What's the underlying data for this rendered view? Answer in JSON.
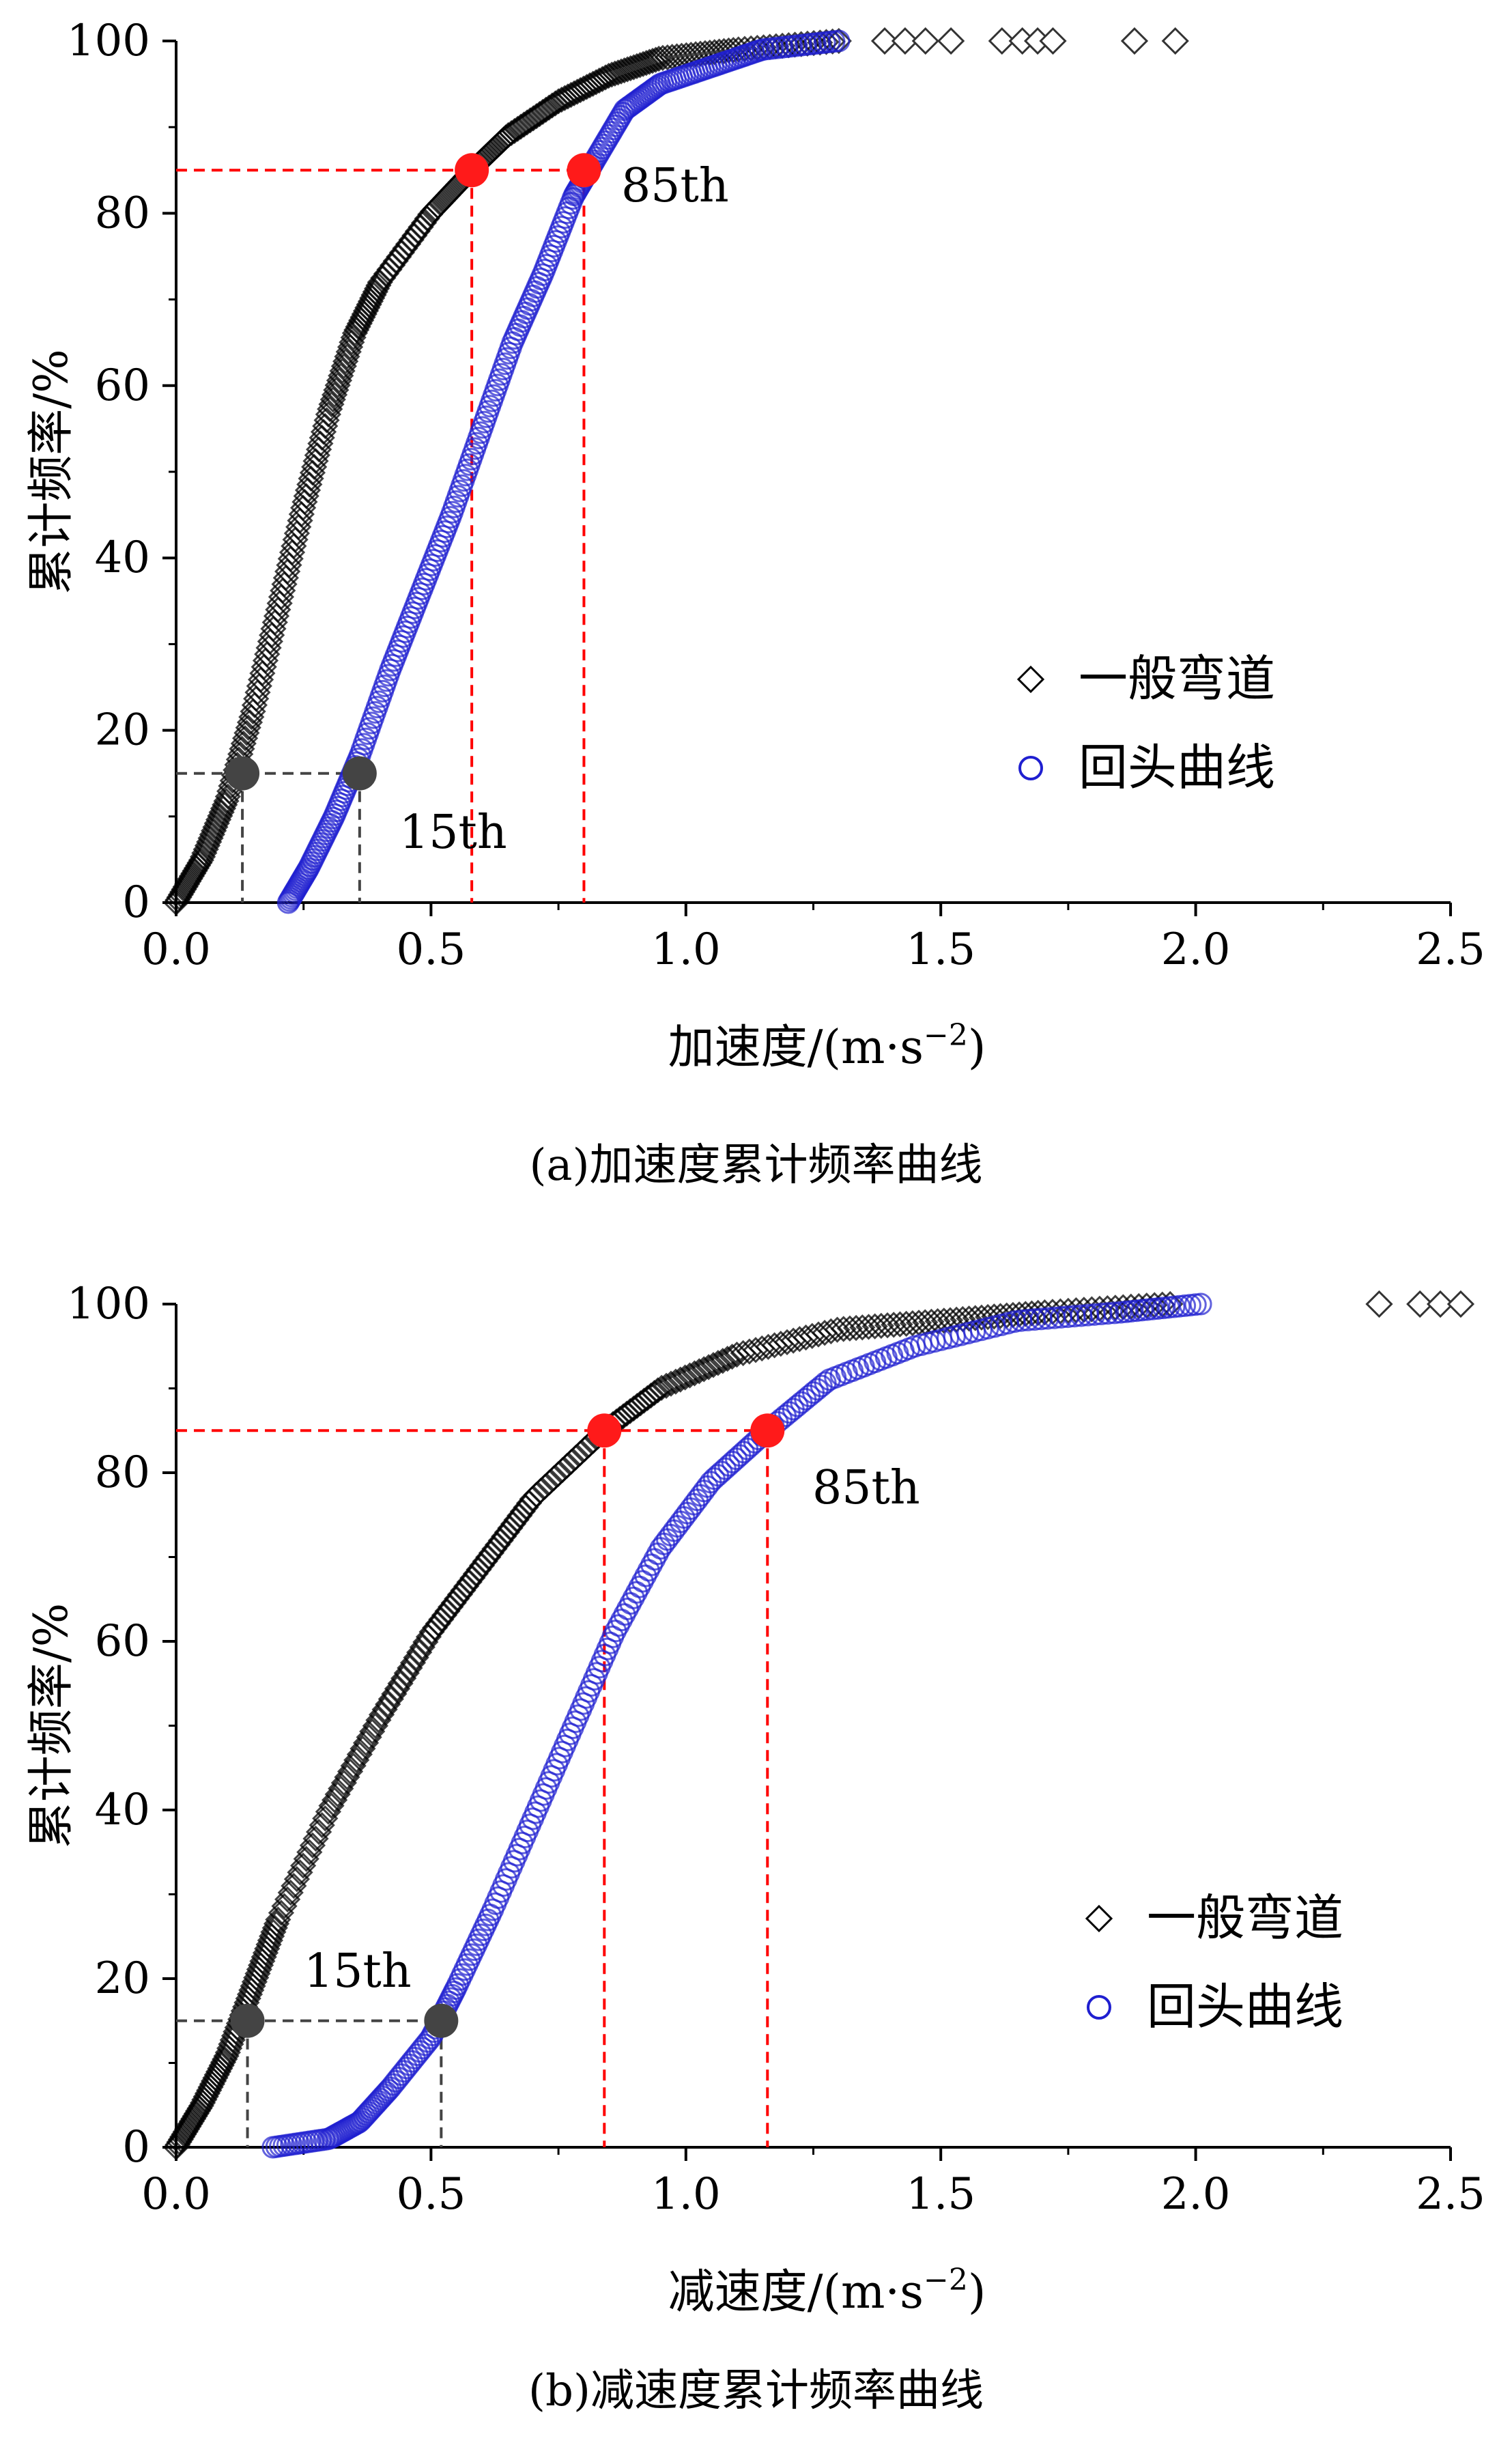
{
  "chart_data": [
    {
      "type": "scatter",
      "title": "",
      "caption": "(a)加速度累计频率曲线",
      "xlabel": "加速度/(m·s",
      "xlabel_sup": "−2",
      "xlabel_close": ")",
      "ylabel": "累计频率/%",
      "xlim": [
        0,
        2.5
      ],
      "ylim": [
        0,
        100
      ],
      "xticks": [
        0.0,
        0.5,
        1.0,
        1.5,
        2.0,
        2.5
      ],
      "xtick_labels": [
        "0.0",
        "0.5",
        "1.0",
        "1.5",
        "2.0",
        "2.5"
      ],
      "yticks": [
        0,
        20,
        40,
        60,
        80,
        100
      ],
      "ytick_labels": [
        "0",
        "20",
        "40",
        "60",
        "80",
        "100"
      ],
      "legend_position": "right",
      "series": [
        {
          "name": "一般弯道",
          "marker": "diamond",
          "color": "#000000",
          "curve": [
            [
              0.0,
              0
            ],
            [
              0.05,
              5
            ],
            [
              0.1,
              12
            ],
            [
              0.15,
              22
            ],
            [
              0.2,
              34
            ],
            [
              0.25,
              46
            ],
            [
              0.3,
              57
            ],
            [
              0.35,
              66
            ],
            [
              0.4,
              72
            ],
            [
              0.5,
              80
            ],
            [
              0.58,
              85
            ],
            [
              0.65,
              89
            ],
            [
              0.75,
              93
            ],
            [
              0.85,
              96
            ],
            [
              0.95,
              98
            ],
            [
              1.1,
              99
            ],
            [
              1.3,
              100
            ]
          ],
          "outliers": [
            1.39,
            1.43,
            1.47,
            1.52,
            1.62,
            1.66,
            1.69,
            1.72,
            1.88,
            1.96
          ]
        },
        {
          "name": "回头曲线",
          "marker": "circle",
          "color": "#1f1fd0",
          "curve": [
            [
              0.22,
              0
            ],
            [
              0.26,
              4
            ],
            [
              0.31,
              10
            ],
            [
              0.36,
              17
            ],
            [
              0.42,
              27
            ],
            [
              0.48,
              36
            ],
            [
              0.54,
              45
            ],
            [
              0.6,
              55
            ],
            [
              0.66,
              65
            ],
            [
              0.72,
              73
            ],
            [
              0.78,
              82
            ],
            [
              0.82,
              86
            ],
            [
              0.88,
              92
            ],
            [
              0.95,
              95
            ],
            [
              1.05,
              97
            ],
            [
              1.15,
              99
            ],
            [
              1.3,
              100
            ]
          ],
          "outliers": []
        }
      ],
      "reference_points": [
        {
          "label": "15th",
          "y": 15,
          "xs": [
            0.13,
            0.36
          ],
          "color": "#444444"
        },
        {
          "label": "85th",
          "y": 85,
          "xs": [
            0.58,
            0.8
          ],
          "color": "#ff0000"
        }
      ],
      "label_15th": "15th",
      "label_85th": "85th"
    },
    {
      "type": "scatter",
      "title": "",
      "caption": "(b)减速度累计频率曲线",
      "xlabel": "减速度/(m·s",
      "xlabel_sup": "−2",
      "xlabel_close": ")",
      "ylabel": "累计频率/%",
      "xlim": [
        0,
        2.5
      ],
      "ylim": [
        0,
        100
      ],
      "xticks": [
        0.0,
        0.5,
        1.0,
        1.5,
        2.0,
        2.5
      ],
      "xtick_labels": [
        "0.0",
        "0.5",
        "1.0",
        "1.5",
        "2.0",
        "2.5"
      ],
      "yticks": [
        0,
        20,
        40,
        60,
        80,
        100
      ],
      "ytick_labels": [
        "0",
        "20",
        "40",
        "60",
        "80",
        "100"
      ],
      "legend_position": "right",
      "series": [
        {
          "name": "一般弯道",
          "marker": "diamond",
          "color": "#000000",
          "curve": [
            [
              0.0,
              0
            ],
            [
              0.05,
              5
            ],
            [
              0.1,
              11
            ],
            [
              0.15,
              19
            ],
            [
              0.2,
              27
            ],
            [
              0.3,
              40
            ],
            [
              0.4,
              51
            ],
            [
              0.5,
              61
            ],
            [
              0.6,
              69
            ],
            [
              0.7,
              77
            ],
            [
              0.84,
              85
            ],
            [
              0.95,
              90
            ],
            [
              1.1,
              94
            ],
            [
              1.3,
              97
            ],
            [
              1.5,
              98
            ],
            [
              1.7,
              99
            ],
            [
              1.95,
              100
            ]
          ],
          "outliers": [
            2.36,
            2.44,
            2.48,
            2.52
          ]
        },
        {
          "name": "回头曲线",
          "marker": "circle",
          "color": "#1f1fd0",
          "curve": [
            [
              0.19,
              0
            ],
            [
              0.3,
              1
            ],
            [
              0.36,
              3
            ],
            [
              0.42,
              7
            ],
            [
              0.5,
              13
            ],
            [
              0.55,
              19
            ],
            [
              0.62,
              28
            ],
            [
              0.7,
              39
            ],
            [
              0.78,
              50
            ],
            [
              0.86,
              61
            ],
            [
              0.95,
              71
            ],
            [
              1.05,
              79
            ],
            [
              1.16,
              85
            ],
            [
              1.28,
              91
            ],
            [
              1.45,
              95
            ],
            [
              1.65,
              98
            ],
            [
              1.85,
              99
            ],
            [
              2.01,
              100
            ]
          ],
          "outliers": []
        }
      ],
      "reference_points": [
        {
          "label": "15th",
          "y": 15,
          "xs": [
            0.14,
            0.52
          ],
          "color": "#444444"
        },
        {
          "label": "85th",
          "y": 85,
          "xs": [
            0.84,
            1.16
          ],
          "color": "#ff0000"
        }
      ],
      "label_15th": "15th",
      "label_85th": "85th"
    }
  ]
}
